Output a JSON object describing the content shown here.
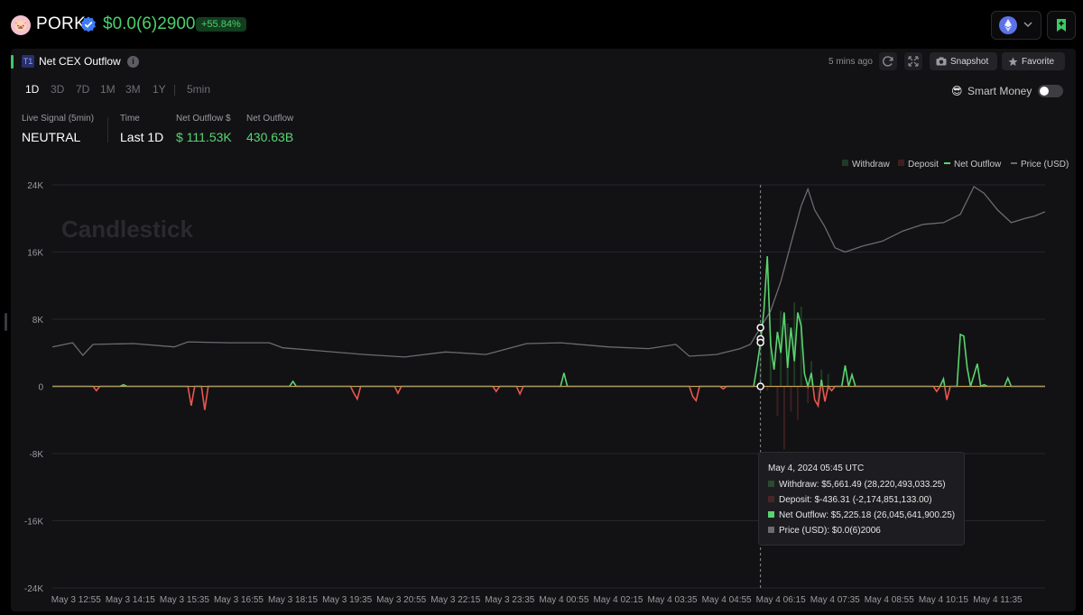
{
  "token": {
    "name": "PORK",
    "price": "$0.0(6)2900",
    "change": "+55.84%"
  },
  "panel": {
    "badge": "T1",
    "title": "Net CEX Outflow",
    "updated": "5 mins ago",
    "snapshot_label": "Snapshot",
    "favorite_label": "Favorite",
    "timeframes": [
      "1D",
      "3D",
      "7D",
      "1M",
      "3M",
      "1Y",
      "5min"
    ],
    "active_timeframe": "1D",
    "smart_money_label": "Smart Money",
    "smart_money_on": false
  },
  "stats": {
    "live_signal_label": "Live Signal (5min)",
    "live_signal_value": "NEUTRAL",
    "time_label": "Time",
    "time_value": "Last 1D",
    "net_outflow_usd_label": "Net Outflow $",
    "net_outflow_usd_value": "$ 111.53K",
    "net_outflow_label": "Net Outflow",
    "net_outflow_value": "430.63B"
  },
  "colors": {
    "withdraw": "#1f3b24",
    "deposit": "#3d1f1f",
    "net_outflow_pos": "#5ad36f",
    "net_outflow_neg": "#e8574e",
    "price": "#6b6b70",
    "accent": "#49d16b"
  },
  "chart_data": {
    "type": "line",
    "watermark": "Candlestick",
    "legend": [
      "Withdraw",
      "Deposit",
      "Net Outflow",
      "Price (USD)"
    ],
    "legend_position": "top-right",
    "ylim": [
      -24000,
      24000
    ],
    "yticks": [
      24000,
      16000,
      8000,
      0,
      -8000,
      -16000,
      -24000
    ],
    "ytick_labels": [
      "24K",
      "16K",
      "8K",
      "0",
      "-8K",
      "-16K",
      "-24K"
    ],
    "xtick_labels": [
      "May 3 12:55",
      "May 3 14:15",
      "May 3 15:35",
      "May 3 16:55",
      "May 3 18:15",
      "May 3 19:35",
      "May 3 20:55",
      "May 3 22:15",
      "May 3 23:35",
      "May 4 00:55",
      "May 4 02:15",
      "May 4 03:35",
      "May 4 04:55",
      "May 4 06:15",
      "May 4 07:35",
      "May 4 08:55",
      "May 4 10:15",
      "May 4 11:35"
    ],
    "x_start": "May 3 12:20",
    "x_end": "May 4 12:45",
    "grid": true,
    "series": [
      {
        "name": "Net Outflow",
        "points": [
          [
            "May 3 12:20",
            0
          ],
          [
            "May 3 13:20",
            0
          ],
          [
            "May 3 13:25",
            -500
          ],
          [
            "May 3 13:30",
            0
          ],
          [
            "May 3 14:00",
            0
          ],
          [
            "May 3 14:05",
            200
          ],
          [
            "May 3 14:10",
            0
          ],
          [
            "May 3 15:40",
            0
          ],
          [
            "May 3 15:45",
            -2300
          ],
          [
            "May 3 15:50",
            0
          ],
          [
            "May 3 16:00",
            0
          ],
          [
            "May 3 16:05",
            -2800
          ],
          [
            "May 3 16:10",
            0
          ],
          [
            "May 3 18:10",
            0
          ],
          [
            "May 3 18:15",
            600
          ],
          [
            "May 3 18:20",
            0
          ],
          [
            "May 3 19:40",
            0
          ],
          [
            "May 3 19:45",
            -800
          ],
          [
            "May 3 19:50",
            -1500
          ],
          [
            "May 3 19:55",
            0
          ],
          [
            "May 3 20:45",
            0
          ],
          [
            "May 3 20:50",
            -800
          ],
          [
            "May 3 20:55",
            0
          ],
          [
            "May 3 23:10",
            0
          ],
          [
            "May 3 23:15",
            -600
          ],
          [
            "May 3 23:20",
            0
          ],
          [
            "May 3 23:45",
            0
          ],
          [
            "May 3 23:50",
            -900
          ],
          [
            "May 3 23:55",
            0
          ],
          [
            "May 4 00:50",
            0
          ],
          [
            "May 4 00:55",
            1600
          ],
          [
            "May 4 01:00",
            0
          ],
          [
            "May 4 04:00",
            0
          ],
          [
            "May 4 04:05",
            -1200
          ],
          [
            "May 4 04:10",
            -1700
          ],
          [
            "May 4 04:15",
            0
          ],
          [
            "May 4 04:45",
            0
          ],
          [
            "May 4 04:50",
            -300
          ],
          [
            "May 4 04:55",
            0
          ],
          [
            "May 4 05:35",
            0
          ],
          [
            "May 4 05:40",
            2500
          ],
          [
            "May 4 05:45",
            5225.18
          ],
          [
            "May 4 05:50",
            9000
          ],
          [
            "May 4 05:55",
            15500
          ],
          [
            "May 4 06:00",
            5000
          ],
          [
            "May 4 06:05",
            2000
          ],
          [
            "May 4 06:10",
            6500
          ],
          [
            "May 4 06:15",
            4000
          ],
          [
            "May 4 06:20",
            8800
          ],
          [
            "May 4 06:25",
            2200
          ],
          [
            "May 4 06:30",
            7000
          ],
          [
            "May 4 06:35",
            3000
          ],
          [
            "May 4 06:40",
            8800
          ],
          [
            "May 4 06:45",
            7200
          ],
          [
            "May 4 06:50",
            1500
          ],
          [
            "May 4 06:55",
            0
          ],
          [
            "May 4 07:00",
            1600
          ],
          [
            "May 4 07:05",
            -1600
          ],
          [
            "May 4 07:10",
            -2300
          ],
          [
            "May 4 07:15",
            800
          ],
          [
            "May 4 07:20",
            -1800
          ],
          [
            "May 4 07:25",
            0
          ],
          [
            "May 4 07:30",
            -500
          ],
          [
            "May 4 07:35",
            0
          ],
          [
            "May 4 07:45",
            0
          ],
          [
            "May 4 07:50",
            2500
          ],
          [
            "May 4 07:55",
            0
          ],
          [
            "May 4 08:00",
            1400
          ],
          [
            "May 4 08:05",
            0
          ],
          [
            "May 4 10:00",
            0
          ],
          [
            "May 4 10:05",
            -600
          ],
          [
            "May 4 10:10",
            0
          ],
          [
            "May 4 10:15",
            900
          ],
          [
            "May 4 10:20",
            -1600
          ],
          [
            "May 4 10:25",
            0
          ],
          [
            "May 4 10:35",
            0
          ],
          [
            "May 4 10:40",
            6200
          ],
          [
            "May 4 10:45",
            6000
          ],
          [
            "May 4 10:50",
            2200
          ],
          [
            "May 4 10:55",
            0
          ],
          [
            "May 4 11:05",
            2700
          ],
          [
            "May 4 11:10",
            0
          ],
          [
            "May 4 11:15",
            200
          ],
          [
            "May 4 11:20",
            0
          ],
          [
            "May 4 11:45",
            0
          ],
          [
            "May 4 11:50",
            1000
          ],
          [
            "May 4 11:55",
            0
          ],
          [
            "May 4 12:45",
            0
          ]
        ]
      },
      {
        "name": "Withdraw",
        "points": [
          [
            "May 4 05:45",
            5661.49
          ],
          [
            "May 4 06:00",
            6000
          ],
          [
            "May 4 06:15",
            9000
          ],
          [
            "May 4 06:25",
            7500
          ],
          [
            "May 4 06:35",
            10000
          ],
          [
            "May 4 06:45",
            9500
          ],
          [
            "May 4 07:00",
            3000
          ],
          [
            "May 4 07:15",
            2000
          ],
          [
            "May 4 07:25",
            1500
          ]
        ]
      },
      {
        "name": "Deposit",
        "points": [
          [
            "May 4 05:45",
            -436.31
          ],
          [
            "May 4 05:55",
            -500
          ],
          [
            "May 4 06:10",
            -3500
          ],
          [
            "May 4 06:20",
            -7500
          ],
          [
            "May 4 06:30",
            -3000
          ],
          [
            "May 4 06:40",
            -4000
          ],
          [
            "May 4 06:55",
            -2000
          ],
          [
            "May 4 07:10",
            -2500
          ]
        ]
      },
      {
        "name": "Price (USD)",
        "points": [
          [
            "May 3 12:20",
            4700
          ],
          [
            "May 3 12:50",
            5200
          ],
          [
            "May 3 13:05",
            3700
          ],
          [
            "May 3 13:20",
            5000
          ],
          [
            "May 3 14:20",
            5100
          ],
          [
            "May 3 15:20",
            4700
          ],
          [
            "May 3 15:40",
            5300
          ],
          [
            "May 3 16:40",
            5200
          ],
          [
            "May 3 17:40",
            5200
          ],
          [
            "May 3 18:00",
            4600
          ],
          [
            "May 3 19:00",
            4200
          ],
          [
            "May 3 20:00",
            3800
          ],
          [
            "May 3 21:00",
            3500
          ],
          [
            "May 3 22:00",
            4100
          ],
          [
            "May 3 23:00",
            3800
          ],
          [
            "May 4 00:00",
            5100
          ],
          [
            "May 4 00:50",
            5200
          ],
          [
            "May 4 02:00",
            4700
          ],
          [
            "May 4 03:00",
            4500
          ],
          [
            "May 4 03:40",
            5000
          ],
          [
            "May 4 04:00",
            3600
          ],
          [
            "May 4 04:40",
            3800
          ],
          [
            "May 4 05:15",
            4500
          ],
          [
            "May 4 05:30",
            5000
          ],
          [
            "May 4 05:45",
            7000
          ],
          [
            "May 4 06:00",
            9000
          ],
          [
            "May 4 06:15",
            12500
          ],
          [
            "May 4 06:30",
            17000
          ],
          [
            "May 4 06:45",
            21500
          ],
          [
            "May 4 06:55",
            23500
          ],
          [
            "May 4 07:05",
            21000
          ],
          [
            "May 4 07:20",
            19000
          ],
          [
            "May 4 07:35",
            16500
          ],
          [
            "May 4 07:50",
            16000
          ],
          [
            "May 4 08:15",
            16700
          ],
          [
            "May 4 08:45",
            17300
          ],
          [
            "May 4 09:15",
            18500
          ],
          [
            "May 4 09:45",
            19300
          ],
          [
            "May 4 10:15",
            19500
          ],
          [
            "May 4 10:40",
            20500
          ],
          [
            "May 4 11:00",
            23800
          ],
          [
            "May 4 11:15",
            23000
          ],
          [
            "May 4 11:35",
            21000
          ],
          [
            "May 4 11:55",
            19500
          ],
          [
            "May 4 12:15",
            20000
          ],
          [
            "May 4 12:30",
            20300
          ],
          [
            "May 4 12:45",
            20800
          ]
        ]
      }
    ],
    "crosshair_time": "May 4 05:45",
    "tooltip": {
      "title": "May 4, 2024 05:45 UTC",
      "withdraw": "Withdraw: $5,661.49 (28,220,493,033.25)",
      "deposit": "Deposit: $-436.31 (-2,174,851,133.00)",
      "net_outflow": "Net Outflow: $5,225.18 (26,045,641,900.25)",
      "price": "Price (USD): $0.0(6)2006"
    }
  }
}
